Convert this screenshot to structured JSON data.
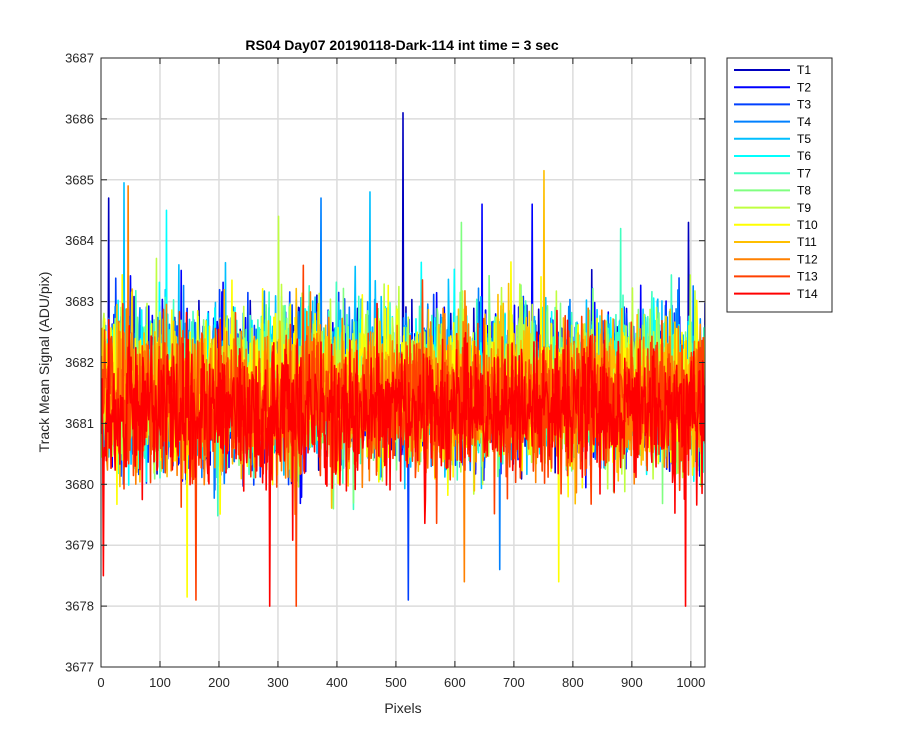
{
  "chart_data": {
    "type": "line",
    "title": "RS04 Day07 20190118-Dark-114 int time = 3 sec",
    "xlabel": "Pixels",
    "ylabel": "Track Mean Signal (ADU/pix)",
    "xlim": [
      0,
      1024
    ],
    "ylim": [
      3677,
      3687
    ],
    "xticks": [
      0,
      100,
      200,
      300,
      400,
      500,
      600,
      700,
      800,
      900,
      1000
    ],
    "yticks": [
      3677,
      3678,
      3679,
      3680,
      3681,
      3682,
      3683,
      3684,
      3685,
      3686,
      3687
    ],
    "grid": true,
    "legend_position": "outside-top-right",
    "num_points_per_series": 1024,
    "series": [
      {
        "name": "T1",
        "color": "#0000bf",
        "mean": 3681.6,
        "spread": 0.95,
        "peaks": [
          {
            "x": 511,
            "y": 3686.1
          },
          {
            "x": 12,
            "y": 3684.7
          },
          {
            "x": 995,
            "y": 3684.3
          }
        ]
      },
      {
        "name": "T2",
        "color": "#0000ff",
        "mean": 3681.6,
        "spread": 0.95,
        "peaks": [
          {
            "x": 645,
            "y": 3684.6
          },
          {
            "x": 730,
            "y": 3684.6
          }
        ]
      },
      {
        "name": "T3",
        "color": "#0040ff",
        "mean": 3681.6,
        "spread": 0.95,
        "peaks": [
          {
            "x": 520,
            "y": 3678.1
          }
        ]
      },
      {
        "name": "T4",
        "color": "#0080ff",
        "mean": 3681.6,
        "spread": 0.95,
        "peaks": [
          {
            "x": 372,
            "y": 3684.7
          },
          {
            "x": 675,
            "y": 3678.6
          }
        ]
      },
      {
        "name": "T5",
        "color": "#00bfff",
        "mean": 3681.6,
        "spread": 0.95,
        "peaks": [
          {
            "x": 38,
            "y": 3684.95
          },
          {
            "x": 455,
            "y": 3684.8
          }
        ]
      },
      {
        "name": "T6",
        "color": "#00ffff",
        "mean": 3681.6,
        "spread": 0.95,
        "peaks": [
          {
            "x": 110,
            "y": 3684.5
          }
        ]
      },
      {
        "name": "T7",
        "color": "#40ffbf",
        "mean": 3681.6,
        "spread": 0.95,
        "peaks": [
          {
            "x": 880,
            "y": 3684.2
          }
        ]
      },
      {
        "name": "T8",
        "color": "#80ff80",
        "mean": 3681.6,
        "spread": 0.95,
        "peaks": [
          {
            "x": 610,
            "y": 3684.3
          }
        ]
      },
      {
        "name": "T9",
        "color": "#bfff40",
        "mean": 3681.6,
        "spread": 0.95,
        "peaks": [
          {
            "x": 300,
            "y": 3684.4
          }
        ]
      },
      {
        "name": "T10",
        "color": "#ffff00",
        "mean": 3681.5,
        "spread": 0.95,
        "peaks": [
          {
            "x": 145,
            "y": 3678.15
          },
          {
            "x": 775,
            "y": 3678.4
          }
        ]
      },
      {
        "name": "T11",
        "color": "#ffbf00",
        "mean": 3681.5,
        "spread": 0.95,
        "peaks": [
          {
            "x": 750,
            "y": 3685.15
          }
        ]
      },
      {
        "name": "T12",
        "color": "#ff8000",
        "mean": 3681.4,
        "spread": 0.95,
        "peaks": [
          {
            "x": 45,
            "y": 3684.9
          },
          {
            "x": 615,
            "y": 3678.4
          }
        ]
      },
      {
        "name": "T13",
        "color": "#ff4000",
        "mean": 3681.3,
        "spread": 0.95,
        "peaks": [
          {
            "x": 160,
            "y": 3678.1
          },
          {
            "x": 330,
            "y": 3678.0
          }
        ]
      },
      {
        "name": "T14",
        "color": "#ff0000",
        "mean": 3681.2,
        "spread": 0.95,
        "peaks": [
          {
            "x": 285,
            "y": 3678.0
          },
          {
            "x": 990,
            "y": 3678.0
          },
          {
            "x": 3,
            "y": 3678.5
          }
        ]
      }
    ]
  }
}
